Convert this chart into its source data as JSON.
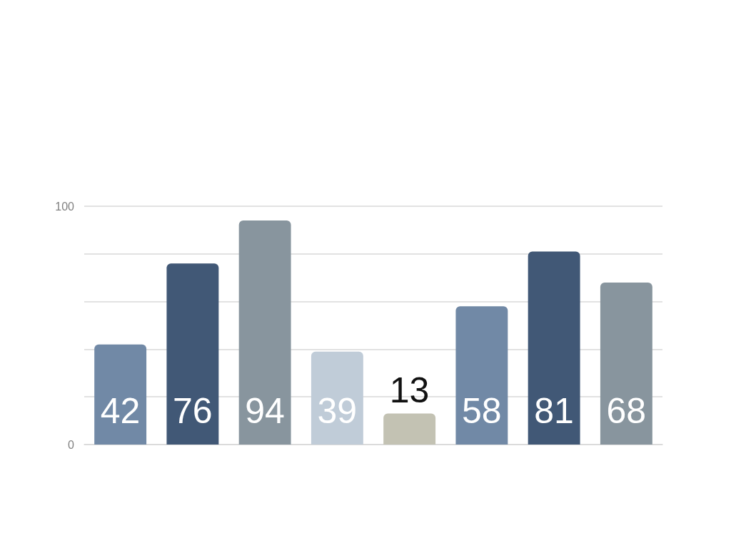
{
  "chart_data": {
    "type": "bar",
    "categories": [
      null,
      null,
      null,
      null,
      null,
      null,
      null,
      null
    ],
    "values": [
      42,
      76,
      94,
      39,
      13,
      58,
      81,
      68
    ],
    "colors": [
      "#7189a6",
      "#415876",
      "#88959e",
      "#c0ccd8",
      "#c3c2b3",
      "#7189a6",
      "#415876",
      "#88959e"
    ],
    "ylim": [
      0,
      100
    ],
    "yticks": [
      0,
      {
        "value": 20,
        "label": null
      },
      {
        "value": 40,
        "label": null
      },
      {
        "value": 60,
        "label": null
      },
      {
        "value": 80,
        "label": null
      },
      100
    ],
    "grid": "y",
    "data_labels": true
  }
}
